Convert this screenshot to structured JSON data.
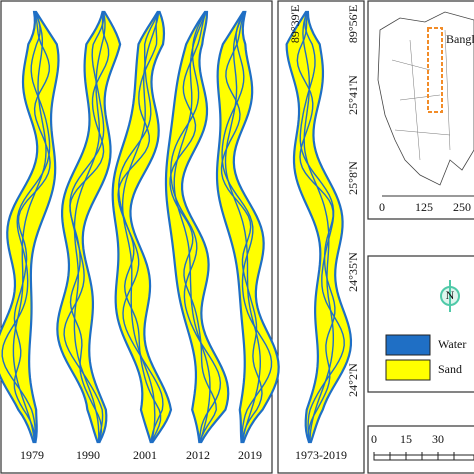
{
  "panels": {
    "years": [
      "1979",
      "1990",
      "2001",
      "2012",
      "2019"
    ],
    "composite_label": "1973-2019",
    "longitudes": [
      "89°39'E",
      "89°56'E"
    ],
    "latitudes": [
      "25°41'N",
      "25°8'N",
      "24°35'N",
      "24°2'N"
    ]
  },
  "inset": {
    "label": "Bangladesh",
    "scale": [
      "0",
      "125",
      "250"
    ]
  },
  "north": "N",
  "legend": [
    {
      "label": "Water",
      "color": "#1f6fc5"
    },
    {
      "label": "Sand",
      "color": "#ffff00"
    }
  ],
  "scale_bar": [
    "0",
    "15",
    "30"
  ]
}
